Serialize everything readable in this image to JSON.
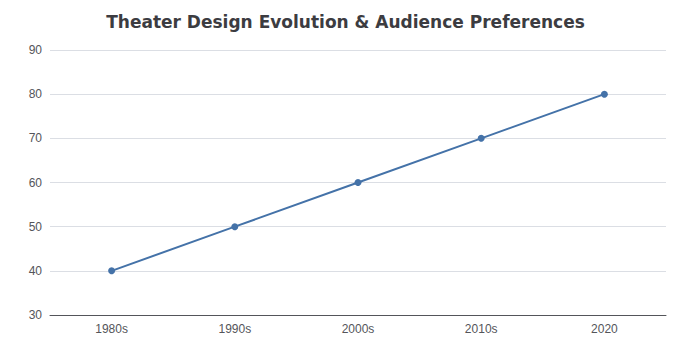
{
  "chart_data": {
    "type": "line",
    "title": "Theater Design Evolution & Audience Preferences",
    "categories": [
      "1980s",
      "1990s",
      "2000s",
      "2010s",
      "2020"
    ],
    "values": [
      40,
      50,
      60,
      70,
      80
    ],
    "color": "#4472a8",
    "marker": "circle",
    "ylim": [
      30,
      90
    ],
    "yticks": [
      30,
      40,
      50,
      60,
      70,
      80,
      90
    ],
    "grid": true
  }
}
